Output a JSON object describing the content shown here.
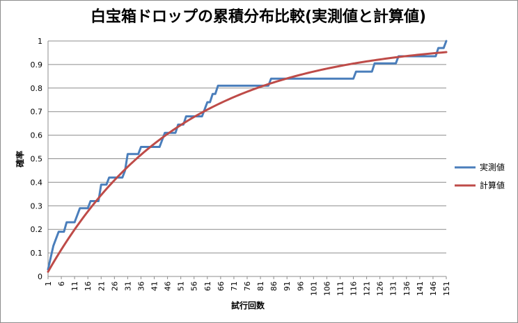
{
  "chart_data": {
    "type": "line",
    "title": "白宝箱ドロップの累積分布比較(実測値と計算値)",
    "xlabel": "試行回数",
    "ylabel": "確率",
    "xlim": [
      1,
      151
    ],
    "ylim": [
      0,
      1
    ],
    "y_ticks": [
      "0",
      "0.1",
      "0.2",
      "0.3",
      "0.4",
      "0.5",
      "0.6",
      "0.7",
      "0.8",
      "0.9",
      "1"
    ],
    "x_ticks": [
      "1",
      "6",
      "11",
      "16",
      "21",
      "26",
      "31",
      "36",
      "41",
      "46",
      "51",
      "56",
      "61",
      "66",
      "71",
      "76",
      "81",
      "86",
      "91",
      "96",
      "101",
      "106",
      "111",
      "116",
      "121",
      "126",
      "131",
      "136",
      "141",
      "146",
      "151"
    ],
    "grid": "horizontal",
    "legend_position": "right",
    "series": [
      {
        "name": "実測値",
        "color": "#4a7ebb",
        "step": true,
        "points": [
          [
            1,
            0.03
          ],
          [
            3,
            0.13
          ],
          [
            5,
            0.19
          ],
          [
            7,
            0.19
          ],
          [
            8,
            0.23
          ],
          [
            11,
            0.23
          ],
          [
            12,
            0.26
          ],
          [
            13,
            0.29
          ],
          [
            16,
            0.29
          ],
          [
            17,
            0.32
          ],
          [
            20,
            0.32
          ],
          [
            21,
            0.39
          ],
          [
            23,
            0.39
          ],
          [
            24,
            0.42
          ],
          [
            29,
            0.42
          ],
          [
            30,
            0.45
          ],
          [
            31,
            0.52
          ],
          [
            35,
            0.52
          ],
          [
            36,
            0.55
          ],
          [
            43,
            0.55
          ],
          [
            44,
            0.58
          ],
          [
            45,
            0.61
          ],
          [
            49,
            0.61
          ],
          [
            50,
            0.645
          ],
          [
            52,
            0.645
          ],
          [
            53,
            0.68
          ],
          [
            59,
            0.68
          ],
          [
            60,
            0.71
          ],
          [
            61,
            0.74
          ],
          [
            62,
            0.74
          ],
          [
            63,
            0.775
          ],
          [
            64,
            0.775
          ],
          [
            65,
            0.81
          ],
          [
            84,
            0.81
          ],
          [
            85,
            0.84
          ],
          [
            116,
            0.84
          ],
          [
            117,
            0.87
          ],
          [
            123,
            0.87
          ],
          [
            124,
            0.905
          ],
          [
            132,
            0.905
          ],
          [
            133,
            0.935
          ],
          [
            147,
            0.935
          ],
          [
            148,
            0.97
          ],
          [
            150,
            0.97
          ],
          [
            151,
            1.0
          ]
        ]
      },
      {
        "name": "計算値",
        "color": "#be4b48",
        "step": false,
        "rate": 0.02
      }
    ]
  }
}
